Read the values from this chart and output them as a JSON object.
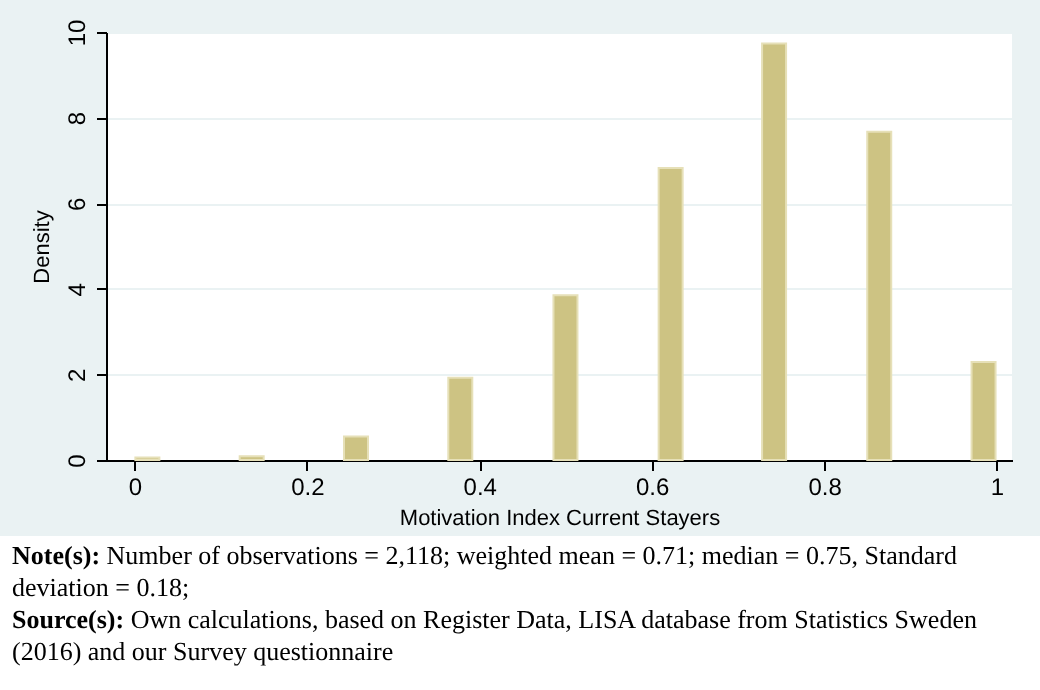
{
  "chart_data": {
    "type": "bar",
    "xlabel": "Motivation Index Current Stayers",
    "ylabel": "Density",
    "x": [
      0.015,
      0.136,
      0.257,
      0.378,
      0.5,
      0.622,
      0.742,
      0.864,
      0.985
    ],
    "values": [
      0.06,
      0.09,
      0.55,
      1.92,
      3.85,
      6.82,
      9.73,
      7.67,
      2.29
    ],
    "color": "#cdc383",
    "xlim": [
      -0.033,
      1.018
    ],
    "xticks": [
      0,
      0.2,
      0.4,
      0.6,
      0.8,
      1
    ],
    "ylim": [
      0,
      10
    ],
    "yticks": [
      0,
      2,
      4,
      6,
      8,
      10
    ],
    "grid": "y",
    "annotations": [
      "Note(s): Number of observations = 2,118; weighted mean = 0.71; median = 0.75, Standard deviation = 0.18;",
      "Source(s): Own calculations, based on Register Data, LISA database from Statistics Sweden (2016) and our Survey questionnaire"
    ]
  }
}
